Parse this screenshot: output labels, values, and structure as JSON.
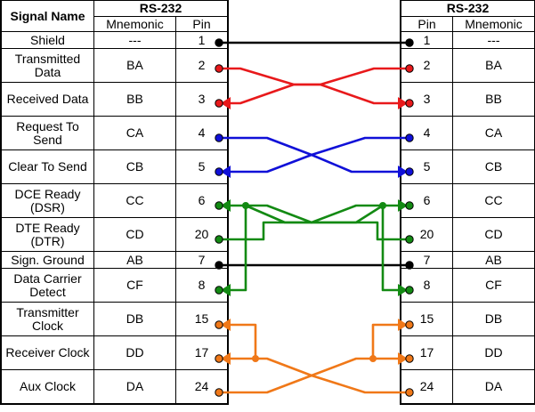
{
  "left": {
    "group_title": "RS-232",
    "signal_name_header": "Signal Name",
    "mnemonic_header": "Mnemonic",
    "pin_header": "Pin"
  },
  "right": {
    "group_title": "RS-232",
    "pin_header": "Pin",
    "mnemonic_header": "Mnemonic"
  },
  "rows": [
    {
      "signal": "Shield",
      "mnemonic": "---",
      "pin": "1"
    },
    {
      "signal": "Transmitted Data",
      "mnemonic": "BA",
      "pin": "2"
    },
    {
      "signal": "Received Data",
      "mnemonic": "BB",
      "pin": "3"
    },
    {
      "signal": "Request To Send",
      "mnemonic": "CA",
      "pin": "4"
    },
    {
      "signal": "Clear To Send",
      "mnemonic": "CB",
      "pin": "5"
    },
    {
      "signal": "DCE Ready (DSR)",
      "mnemonic": "CC",
      "pin": "6"
    },
    {
      "signal": "DTE Ready (DTR)",
      "mnemonic": "CD",
      "pin": "20"
    },
    {
      "signal": "Sign. Ground",
      "mnemonic": "AB",
      "pin": "7"
    },
    {
      "signal": "Data Carrier Detect",
      "mnemonic": "CF",
      "pin": "8"
    },
    {
      "signal": "Transmitter Clock",
      "mnemonic": "DB",
      "pin": "15"
    },
    {
      "signal": "Receiver Clock",
      "mnemonic": "DD",
      "pin": "17"
    },
    {
      "signal": "Aux Clock",
      "mnemonic": "DA",
      "pin": "24"
    }
  ],
  "colors": {
    "shield_ground": "#000000",
    "data": "#e8191b",
    "rts_cts": "#1010d8",
    "dsr_dtr_dcd": "#138a13",
    "clocks": "#f07818"
  }
}
